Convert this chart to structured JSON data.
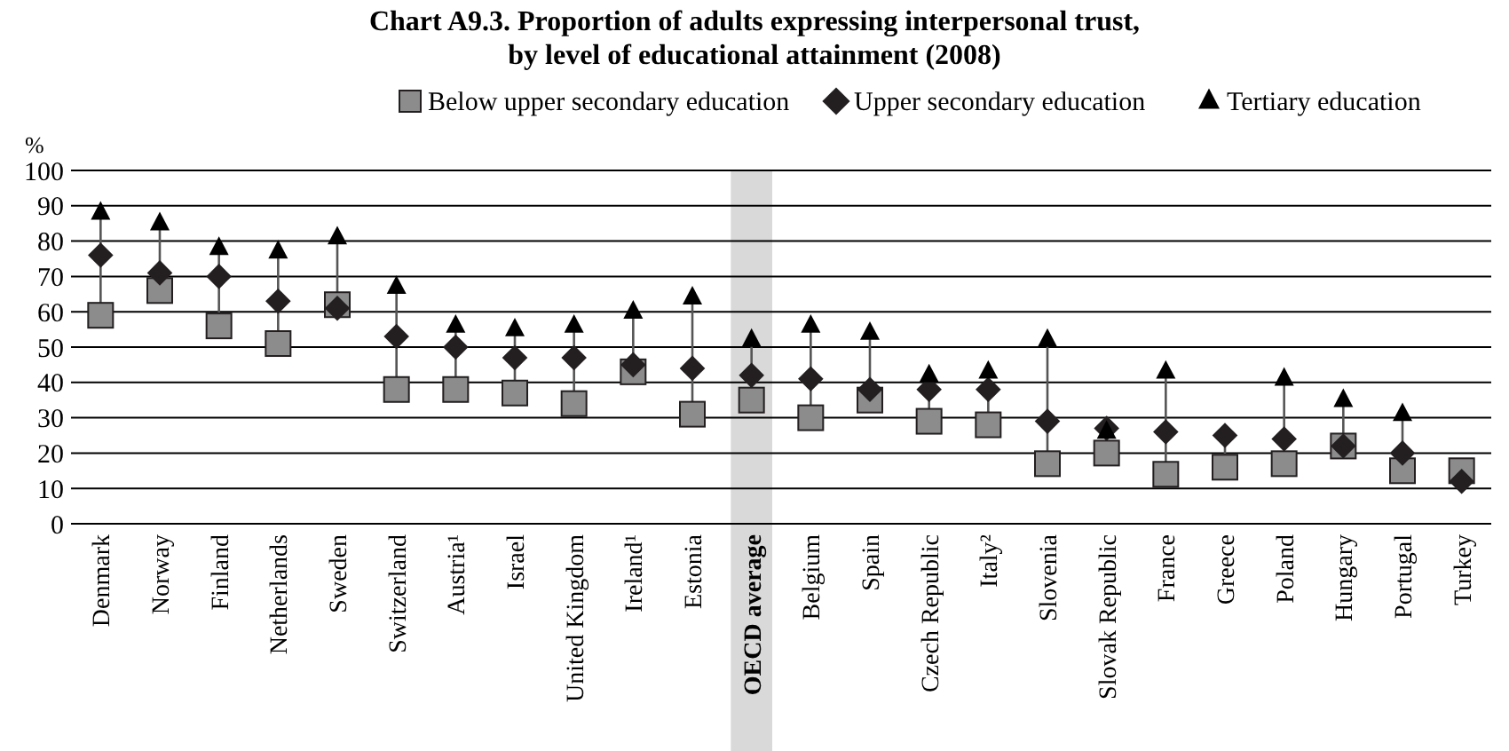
{
  "chart_data": {
    "type": "scatter",
    "title": "Chart A9.3.  Proportion of adults expressing interpersonal trust,\nby level of educational attainment (2008)",
    "ylabel": "%",
    "categories": [
      "Denmark",
      "Norway",
      "Finland",
      "Netherlands",
      "Sweden",
      "Switzerland",
      "Austria¹",
      "Israel",
      "United Kingdom",
      "Ireland¹",
      "Estonia",
      "OECD average",
      "Belgium",
      "Spain",
      "Czech Republic",
      "Italy²",
      "Slovenia",
      "Slovak Republic",
      "France",
      "Greece",
      "Poland",
      "Hungary",
      "Portugal",
      "Turkey"
    ],
    "series": [
      {
        "name": "Below upper secondary education",
        "color": "#8c8c8c",
        "marker": "square",
        "values": [
          59,
          66,
          56,
          51,
          62,
          38,
          38,
          37,
          34,
          43,
          31,
          35,
          30,
          35,
          29,
          28,
          17,
          20,
          14,
          16,
          17,
          22,
          15,
          15
        ]
      },
      {
        "name": "Upper secondary education",
        "color": "#231f20",
        "marker": "diamond",
        "values": [
          76,
          71,
          70,
          63,
          61,
          53,
          50,
          47,
          47,
          45,
          44,
          42,
          41,
          38,
          38,
          38,
          29,
          27,
          26,
          25,
          24,
          22,
          20,
          12
        ]
      },
      {
        "name": "Tertiary education",
        "color": "#000000",
        "marker": "triangle",
        "values": [
          88,
          85,
          78,
          77,
          81,
          67,
          56,
          55,
          56,
          60,
          64,
          52,
          56,
          54,
          42,
          43,
          52,
          26,
          43,
          null,
          41,
          35,
          31,
          null
        ]
      }
    ],
    "ylim": [
      0,
      100
    ],
    "yticks": [
      0,
      10,
      20,
      30,
      40,
      50,
      60,
      70,
      80,
      90,
      100
    ],
    "grid": "y",
    "legend": "top",
    "bands": [
      {
        "axis": "x",
        "from": "OECD average",
        "to": "OECD average",
        "color": "#d9d9d9"
      }
    ]
  }
}
